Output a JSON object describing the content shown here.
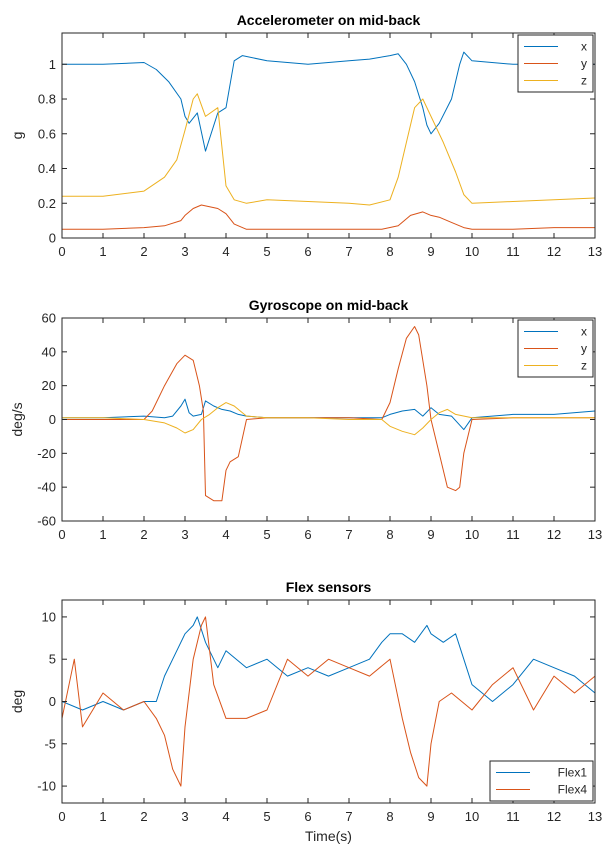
{
  "chart_data": [
    {
      "type": "line",
      "title": "Accelerometer on mid-back",
      "xlabel": "",
      "ylabel": "g",
      "xlim": [
        0,
        13
      ],
      "ylim": [
        0,
        1.18
      ],
      "xticks": [
        0,
        1,
        2,
        3,
        4,
        5,
        6,
        7,
        8,
        9,
        10,
        11,
        12,
        13
      ],
      "yticks": [
        0,
        0.2,
        0.4,
        0.6,
        0.8,
        1
      ],
      "ytick_labels": [
        "0",
        "0.2",
        "0.4",
        "0.6",
        "0.8",
        "1"
      ],
      "grid": false,
      "legend": "top-right",
      "series": [
        {
          "name": "x",
          "color": "#0072BD",
          "x": [
            0,
            1,
            2,
            2.3,
            2.6,
            2.9,
            3.0,
            3.1,
            3.3,
            3.5,
            3.8,
            4.0,
            4.2,
            4.4,
            5,
            6,
            7,
            7.5,
            8.0,
            8.2,
            8.4,
            8.6,
            8.8,
            8.9,
            9.0,
            9.2,
            9.5,
            9.7,
            9.8,
            10,
            11,
            12,
            13
          ],
          "y": [
            1.0,
            1.0,
            1.01,
            0.97,
            0.9,
            0.8,
            0.7,
            0.66,
            0.72,
            0.5,
            0.72,
            0.75,
            1.02,
            1.05,
            1.02,
            1.0,
            1.02,
            1.03,
            1.05,
            1.06,
            1.0,
            0.9,
            0.75,
            0.65,
            0.6,
            0.66,
            0.8,
            1.0,
            1.07,
            1.02,
            1.0,
            1.0,
            1.0
          ]
        },
        {
          "name": "y",
          "color": "#D95319",
          "x": [
            0,
            1,
            2,
            2.5,
            2.9,
            3.0,
            3.2,
            3.4,
            3.6,
            3.8,
            4.0,
            4.2,
            4.5,
            5,
            6,
            7,
            7.8,
            8.2,
            8.5,
            8.8,
            9.0,
            9.2,
            9.5,
            9.8,
            10,
            11,
            12,
            13
          ],
          "y": [
            0.05,
            0.05,
            0.06,
            0.07,
            0.1,
            0.13,
            0.17,
            0.19,
            0.18,
            0.17,
            0.14,
            0.08,
            0.05,
            0.05,
            0.05,
            0.05,
            0.05,
            0.07,
            0.13,
            0.15,
            0.13,
            0.12,
            0.09,
            0.06,
            0.05,
            0.05,
            0.06,
            0.06
          ]
        },
        {
          "name": "z",
          "color": "#EDB120",
          "x": [
            0,
            1,
            2,
            2.5,
            2.8,
            3.0,
            3.2,
            3.3,
            3.5,
            3.8,
            4.0,
            4.2,
            4.5,
            5,
            6,
            7,
            7.5,
            8.0,
            8.2,
            8.4,
            8.6,
            8.8,
            9.0,
            9.3,
            9.6,
            9.8,
            10,
            11,
            12,
            13
          ],
          "y": [
            0.24,
            0.24,
            0.27,
            0.35,
            0.45,
            0.62,
            0.8,
            0.83,
            0.7,
            0.75,
            0.3,
            0.22,
            0.2,
            0.22,
            0.21,
            0.2,
            0.19,
            0.22,
            0.35,
            0.55,
            0.75,
            0.8,
            0.7,
            0.55,
            0.38,
            0.25,
            0.2,
            0.21,
            0.22,
            0.23
          ]
        }
      ]
    },
    {
      "type": "line",
      "title": "Gyroscope on mid-back",
      "xlabel": "",
      "ylabel": "deg/s",
      "xlim": [
        0,
        13
      ],
      "ylim": [
        -60,
        60
      ],
      "xticks": [
        0,
        1,
        2,
        3,
        4,
        5,
        6,
        7,
        8,
        9,
        10,
        11,
        12,
        13
      ],
      "yticks": [
        -60,
        -40,
        -20,
        0,
        20,
        40,
        60
      ],
      "ytick_labels": [
        "-60",
        "-40",
        "-20",
        "0",
        "20",
        "40",
        "60"
      ],
      "grid": false,
      "legend": "top-right",
      "series": [
        {
          "name": "x",
          "color": "#0072BD",
          "x": [
            0,
            1,
            2,
            2.5,
            2.7,
            2.9,
            3.0,
            3.1,
            3.2,
            3.4,
            3.5,
            3.7,
            3.9,
            4.1,
            4.3,
            4.5,
            5,
            6,
            7,
            7.8,
            8.0,
            8.3,
            8.6,
            8.8,
            9.0,
            9.2,
            9.5,
            9.8,
            10,
            11,
            12,
            13
          ],
          "y": [
            1,
            1,
            2,
            1,
            2,
            8,
            12,
            4,
            2,
            3,
            11,
            8,
            6,
            5,
            3,
            2,
            1,
            1,
            1,
            1,
            3,
            5,
            6,
            2,
            7,
            3,
            2,
            -6,
            1,
            3,
            3,
            5
          ]
        },
        {
          "name": "y",
          "color": "#D95319",
          "x": [
            0,
            1,
            2,
            2.2,
            2.5,
            2.8,
            3.0,
            3.2,
            3.35,
            3.45,
            3.5,
            3.7,
            3.9,
            4.0,
            4.1,
            4.3,
            4.5,
            5,
            6,
            7,
            7.8,
            8.0,
            8.2,
            8.4,
            8.6,
            8.7,
            8.9,
            9.0,
            9.2,
            9.4,
            9.6,
            9.7,
            9.8,
            10,
            11,
            12,
            13
          ],
          "y": [
            0,
            0,
            0,
            5,
            20,
            33,
            38,
            35,
            20,
            5,
            -45,
            -48,
            -48,
            -30,
            -25,
            -22,
            0,
            1,
            1,
            1,
            0,
            10,
            30,
            48,
            55,
            50,
            20,
            0,
            -20,
            -40,
            -42,
            -40,
            -20,
            0,
            1,
            1,
            1
          ]
        },
        {
          "name": "z",
          "color": "#EDB120",
          "x": [
            0,
            1,
            2,
            2.5,
            2.8,
            3.0,
            3.2,
            3.4,
            3.6,
            3.8,
            4.0,
            4.2,
            4.5,
            5,
            6,
            7,
            7.8,
            8.0,
            8.3,
            8.6,
            8.8,
            9.0,
            9.2,
            9.4,
            9.6,
            10,
            11,
            12,
            13
          ],
          "y": [
            1,
            1,
            0,
            -2,
            -5,
            -8,
            -6,
            0,
            3,
            7,
            10,
            8,
            2,
            1,
            1,
            0,
            0,
            -4,
            -7,
            -9,
            -5,
            0,
            4,
            6,
            3,
            1,
            1,
            1,
            1
          ]
        }
      ]
    },
    {
      "type": "line",
      "title": "Flex sensors",
      "xlabel": "Time(s)",
      "ylabel": "deg",
      "xlim": [
        0,
        13
      ],
      "ylim": [
        -12,
        12
      ],
      "xticks": [
        0,
        1,
        2,
        3,
        4,
        5,
        6,
        7,
        8,
        9,
        10,
        11,
        12,
        13
      ],
      "yticks": [
        -10,
        -5,
        0,
        5,
        10
      ],
      "ytick_labels": [
        "-10",
        "-5",
        "0",
        "5",
        "10"
      ],
      "grid": false,
      "legend": "bottom-right",
      "series": [
        {
          "name": "Flex1",
          "color": "#0072BD",
          "x": [
            0,
            0.5,
            1,
            1.5,
            2,
            2.3,
            2.5,
            2.7,
            3.0,
            3.2,
            3.3,
            3.5,
            3.8,
            4.0,
            4.5,
            5,
            5.5,
            6,
            6.5,
            7,
            7.5,
            7.8,
            8.0,
            8.3,
            8.6,
            8.9,
            9.0,
            9.3,
            9.6,
            9.8,
            10,
            10.5,
            11,
            11.5,
            12,
            12.5,
            13
          ],
          "y": [
            0,
            -1,
            0,
            -1,
            0,
            0,
            3,
            5,
            8,
            9,
            10,
            7,
            4,
            6,
            4,
            5,
            3,
            4,
            3,
            4,
            5,
            7,
            8,
            8,
            7,
            9,
            8,
            7,
            8,
            5,
            2,
            0,
            2,
            5,
            4,
            3,
            1
          ]
        },
        {
          "name": "Flex4",
          "color": "#D95319",
          "x": [
            0,
            0.3,
            0.5,
            1,
            1.5,
            2,
            2.3,
            2.5,
            2.7,
            2.9,
            3.0,
            3.2,
            3.4,
            3.5,
            3.7,
            4.0,
            4.5,
            5,
            5.5,
            6,
            6.5,
            7,
            7.5,
            8.0,
            8.3,
            8.5,
            8.7,
            8.9,
            9.0,
            9.2,
            9.5,
            10,
            10.5,
            11,
            11.5,
            12,
            12.5,
            13
          ],
          "y": [
            -2,
            5,
            -3,
            1,
            -1,
            0,
            -2,
            -4,
            -8,
            -10,
            -3,
            5,
            9,
            10,
            2,
            -2,
            -2,
            -1,
            5,
            3,
            5,
            4,
            3,
            5,
            -2,
            -6,
            -9,
            -10,
            -5,
            0,
            1,
            -1,
            2,
            4,
            -1,
            3,
            1,
            3
          ]
        }
      ]
    }
  ]
}
